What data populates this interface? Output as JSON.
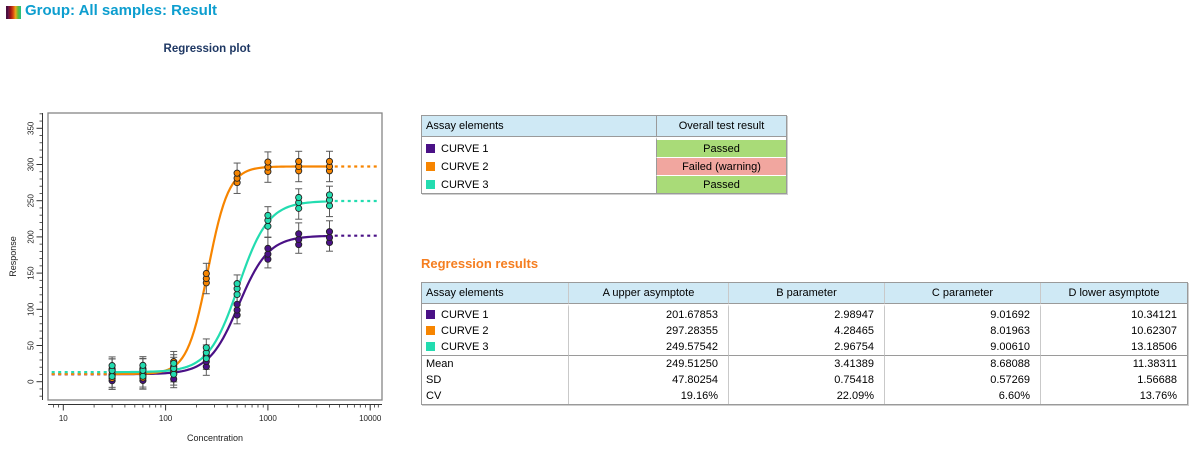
{
  "header": {
    "title": "Group: All samples: Result"
  },
  "plot": {
    "title": "Regression plot"
  },
  "chart_data": {
    "type": "scatter",
    "title": "Regression plot",
    "xlabel": "Concentration",
    "ylabel": "Response",
    "x_scale": "log10",
    "x_ticks": [
      10,
      100,
      1000,
      10000
    ],
    "y_ticks": [
      0,
      50,
      100,
      150,
      200,
      250,
      300,
      350
    ],
    "x_range": [
      7.5,
      12600
    ],
    "y_range": [
      -25,
      371
    ],
    "concentrations": [
      30,
      60,
      120,
      250,
      500,
      1000,
      2000,
      4000
    ],
    "model": "y = D + (A - D) / (1 + (2^C / x)^B)",
    "series": [
      {
        "name": "CURVE 1",
        "color": "#4a1186",
        "A": 201.67853,
        "B": 2.98947,
        "C": 9.01692,
        "D": 10.34121,
        "rep_offsets": [
          -9,
          -2,
          6
        ]
      },
      {
        "name": "CURVE 2",
        "color": "#f78500",
        "A": 297.28355,
        "B": 4.28465,
        "C": 8.01963,
        "D": 10.62307,
        "rep_offsets": [
          -6,
          0,
          7
        ]
      },
      {
        "name": "CURVE 3",
        "color": "#23dcb0",
        "A": 249.57542,
        "B": 2.96754,
        "C": 9.0061,
        "D": 13.18506,
        "rep_offsets": [
          -6,
          2,
          9
        ]
      }
    ],
    "replicates_per_point": 3,
    "error_bar_half_height": 21,
    "curve_x_span": [
      30,
      4000
    ],
    "dashed_extension_left": [
      7.7,
      27
    ],
    "dashed_extension_right": [
      4500,
      12500
    ]
  },
  "result_table": {
    "columns": [
      "Assay elements",
      "Overall test result"
    ],
    "rows": [
      {
        "name": "CURVE 1",
        "result": "Passed",
        "status": "passed"
      },
      {
        "name": "CURVE 2",
        "result": "Failed (warning)",
        "status": "failed"
      },
      {
        "name": "CURVE 3",
        "result": "Passed",
        "status": "passed"
      }
    ]
  },
  "regression": {
    "title": "Regression results",
    "columns": [
      "Assay elements",
      "A upper asymptote",
      "B parameter",
      "C parameter",
      "D lower asymptote"
    ],
    "rows": [
      {
        "name": "CURVE 1",
        "values": [
          "201.67853",
          "2.98947",
          "9.01692",
          "10.34121"
        ]
      },
      {
        "name": "CURVE 2",
        "values": [
          "297.28355",
          "4.28465",
          "8.01963",
          "10.62307"
        ]
      },
      {
        "name": "CURVE 3",
        "values": [
          "249.57542",
          "2.96754",
          "9.00610",
          "13.18506"
        ]
      }
    ],
    "stats": [
      {
        "name": "Mean",
        "values": [
          "249.51250",
          "3.41389",
          "8.68088",
          "11.38311"
        ]
      },
      {
        "name": "SD",
        "values": [
          "47.80254",
          "0.75418",
          "0.57269",
          "1.56688"
        ]
      },
      {
        "name": "CV",
        "values": [
          "19.16%",
          "22.09%",
          "6.60%",
          "13.76%"
        ]
      }
    ]
  },
  "colors": {
    "app_title": "#0d9ecf",
    "plot_title": "#1f3864",
    "section_title": "#f57e20",
    "table_header_bg": "#cfe9f5",
    "passed_bg": "#a9db78",
    "failed_bg": "#f1a69f"
  }
}
